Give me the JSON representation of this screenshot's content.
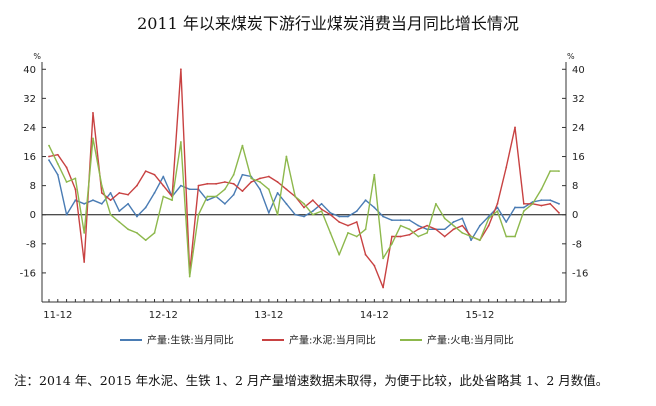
{
  "chart_data": {
    "type": "line",
    "title": "2011 年以来煤炭下游行业煤炭消费当月同比增长情况",
    "unit_left": "%",
    "unit_right": "%",
    "ylim": [
      -24,
      42
    ],
    "yticks": [
      40,
      32,
      24,
      16,
      8,
      0,
      -8,
      -16
    ],
    "x_tick_labels": [
      {
        "label": "11-12",
        "index": 1
      },
      {
        "label": "12-12",
        "index": 13
      },
      {
        "label": "13-12",
        "index": 25
      },
      {
        "label": "14-12",
        "index": 37
      },
      {
        "label": "15-12",
        "index": 49
      }
    ],
    "grid": false,
    "legend_position": "bottom",
    "series": [
      {
        "name": "产量:生铁:当月同比",
        "color": "#4a7cb4",
        "values": [
          15,
          11,
          0,
          4,
          3,
          4,
          3,
          6,
          1,
          3,
          -0.5,
          2,
          6,
          10.5,
          5,
          8,
          7,
          7,
          4,
          5,
          3,
          5.5,
          11,
          10.5,
          7,
          0.5,
          6,
          3,
          0,
          -0.5,
          1,
          3,
          0.5,
          -0.5,
          -0.5,
          1,
          4,
          2,
          -0.5,
          -1.5,
          -1.5,
          -1.5,
          -3,
          -4,
          -4,
          -4,
          -2,
          -1,
          -7,
          -3,
          -0.5,
          2,
          -2,
          2,
          2,
          3.5,
          4,
          4,
          3
        ]
      },
      {
        "name": "产量:水泥:当月同比",
        "color": "#c84242",
        "values": [
          16,
          16.5,
          13,
          7,
          -13,
          28,
          6,
          4,
          6,
          5.5,
          8,
          12,
          11,
          8,
          5,
          40,
          -16,
          8,
          8.5,
          8.5,
          9,
          8.5,
          6.5,
          9,
          10,
          10.5,
          9,
          7,
          5,
          2,
          4,
          1.5,
          0,
          -2,
          -3,
          -2,
          -11,
          -14,
          -20,
          -6,
          -6,
          -5.5,
          -4,
          -3,
          -4,
          -6,
          -4,
          -3,
          -6,
          -7,
          -3,
          3,
          13,
          24,
          3,
          3,
          2.5,
          3,
          0.5
        ]
      },
      {
        "name": "产量:火电:当月同比",
        "color": "#8db84c",
        "values": [
          19,
          14,
          9,
          10,
          -5,
          21,
          8,
          0,
          -2,
          -4,
          -5,
          -7,
          -5,
          5,
          4,
          20,
          -17,
          0,
          5,
          5,
          7,
          11,
          19,
          10,
          9,
          7,
          0,
          16,
          5,
          3,
          0,
          1,
          -5,
          -11,
          -5,
          -6,
          -4,
          11,
          -12,
          -8,
          -3,
          -4,
          -6,
          -5,
          3,
          -1,
          -3,
          -5,
          -6,
          -7,
          -1,
          1,
          -6,
          -6,
          1,
          3,
          7,
          12,
          12
        ]
      }
    ],
    "note": "注：2014 年、2015 年水泥、生铁 1、2 月产量增速数据未取得，为便于比较，此处省略其 1、2 月数值。"
  },
  "colors": {
    "axis": "#333333",
    "zero_line": "#111111"
  }
}
